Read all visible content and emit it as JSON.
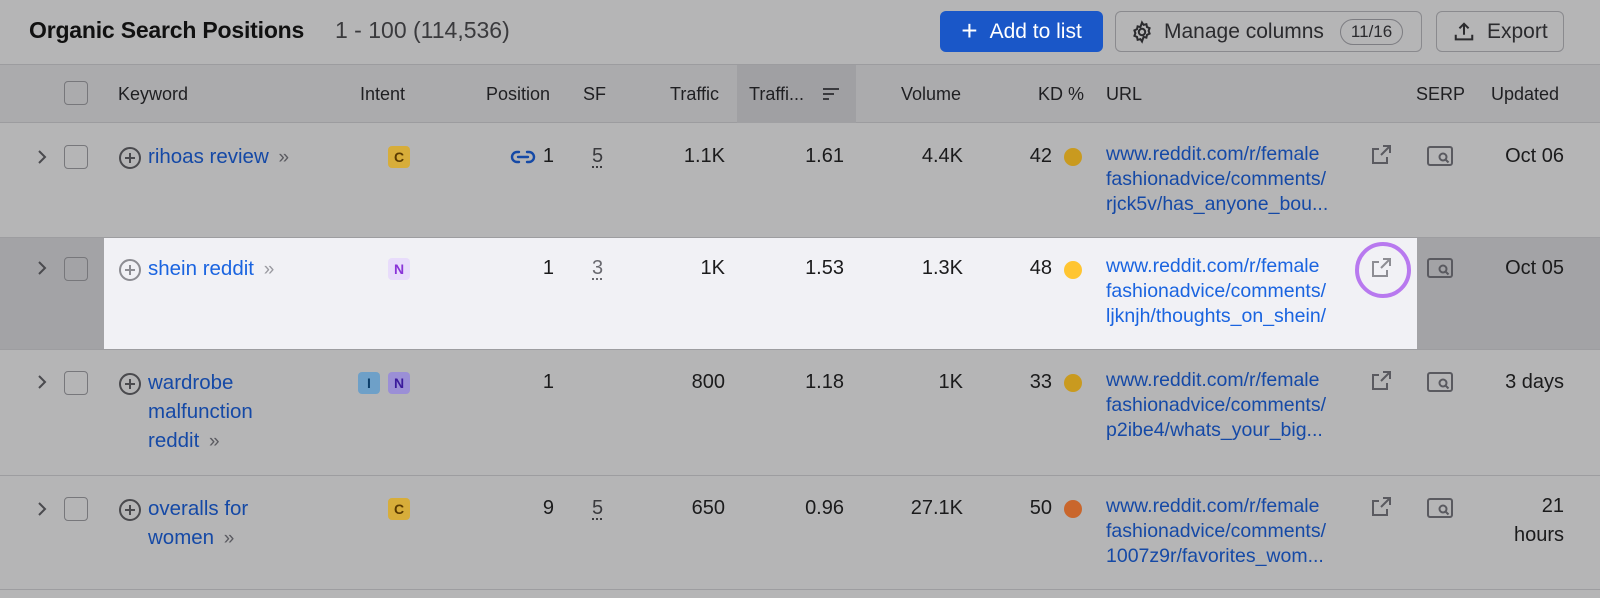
{
  "header": {
    "title": "Organic Search Positions",
    "range": "1 - 100 (114,536)",
    "add_label": "Add to list",
    "manage_label": "Manage columns",
    "manage_count": "11/16",
    "export_label": "Export"
  },
  "columns": {
    "keyword": "Keyword",
    "intent": "Intent",
    "position": "Position",
    "sf": "SF",
    "traffic": "Traffic",
    "traffic_pct": "Traffi...",
    "volume": "Volume",
    "kd": "KD %",
    "url": "URL",
    "serp": "SERP",
    "updated": "Updated"
  },
  "rows": [
    {
      "keyword": "rihoas review",
      "intent": [
        "C"
      ],
      "position": "1",
      "sf": "5",
      "traffic": "1.1K",
      "traffic_pct": "1.61",
      "volume": "4.4K",
      "kd": "42",
      "kd_color": "#c99a1f",
      "url": "www.reddit.com/r/female\nfashionadvice/comments/\nrjck5v/has_anyone_bou...",
      "updated": "Oct 06"
    },
    {
      "keyword": "shein reddit",
      "intent": [
        "N"
      ],
      "position": "1",
      "sf": "3",
      "traffic": "1K",
      "traffic_pct": "1.53",
      "volume": "1.3K",
      "kd": "48",
      "kd_color": "#ffc531",
      "url": "www.reddit.com/r/female\nfashionadvice/comments/\nljknjh/thoughts_on_shein/",
      "updated": "Oct 05"
    },
    {
      "keyword": "wardrobe malfunction reddit",
      "intent": [
        "I",
        "N"
      ],
      "position": "1",
      "sf": "",
      "traffic": "800",
      "traffic_pct": "1.18",
      "volume": "1K",
      "kd": "33",
      "kd_color": "#c99a1f",
      "url": "www.reddit.com/r/female\nfashionadvice/comments/\np2ibe4/whats_your_big...",
      "updated": "3 days"
    },
    {
      "keyword": "overalls for women",
      "intent": [
        "C"
      ],
      "position": "9",
      "sf": "5",
      "traffic": "650",
      "traffic_pct": "0.96",
      "volume": "27.1K",
      "kd": "50",
      "kd_color": "#c9662c",
      "url": "www.reddit.com/r/female\nfashionadvice/comments/\n1007z9r/favorites_wom...",
      "updated": "21\nhours"
    }
  ]
}
